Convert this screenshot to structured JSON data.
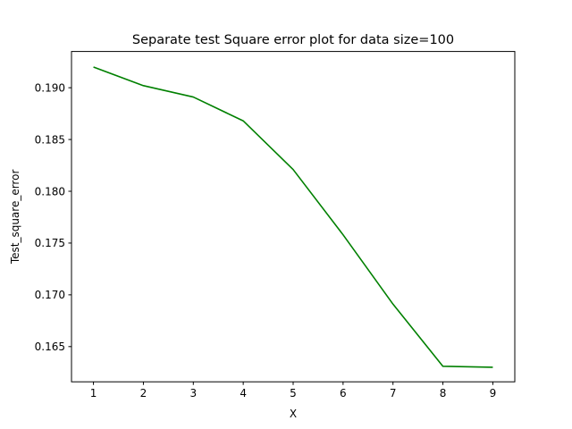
{
  "chart_data": {
    "type": "line",
    "title": "Separate test Square error plot for data size=100",
    "xlabel": "X",
    "ylabel": "Test_square_error",
    "x": [
      1,
      2,
      3,
      4,
      5,
      6,
      7,
      8,
      9
    ],
    "series": [
      {
        "values": [
          0.192,
          0.1902,
          0.1891,
          0.1868,
          0.1821,
          0.1758,
          0.1691,
          0.1631,
          0.163
        ],
        "color": "#008000"
      }
    ],
    "xlim": [
      0.56,
      9.44
    ],
    "ylim": [
      0.1616,
      0.1935
    ],
    "xticks": [
      1,
      2,
      3,
      4,
      5,
      6,
      7,
      8,
      9
    ],
    "xtick_labels": [
      "1",
      "2",
      "3",
      "4",
      "5",
      "6",
      "7",
      "8",
      "9"
    ],
    "yticks": [
      0.165,
      0.17,
      0.175,
      0.18,
      0.185,
      0.19
    ],
    "ytick_labels": [
      "0.165",
      "0.170",
      "0.175",
      "0.180",
      "0.185",
      "0.190"
    ],
    "grid": false,
    "legend": false
  }
}
